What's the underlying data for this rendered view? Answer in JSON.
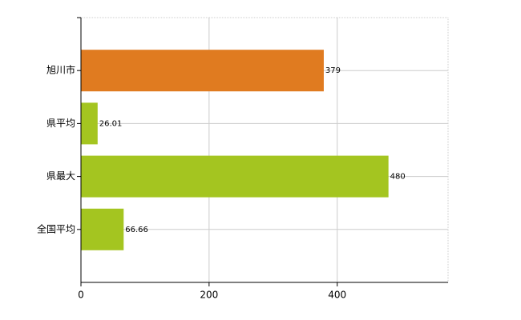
{
  "chart_data": {
    "type": "bar",
    "orientation": "horizontal",
    "categories": [
      "旭川市",
      "県平均",
      "県最大",
      "全国平均"
    ],
    "values": [
      379,
      26.01,
      480,
      66.66
    ],
    "colors": [
      "#e07b20",
      "#a4c520",
      "#a4c520",
      "#a4c520"
    ],
    "xlim": [
      0,
      573
    ],
    "xticks": [
      0,
      200,
      400
    ],
    "grid": true
  }
}
